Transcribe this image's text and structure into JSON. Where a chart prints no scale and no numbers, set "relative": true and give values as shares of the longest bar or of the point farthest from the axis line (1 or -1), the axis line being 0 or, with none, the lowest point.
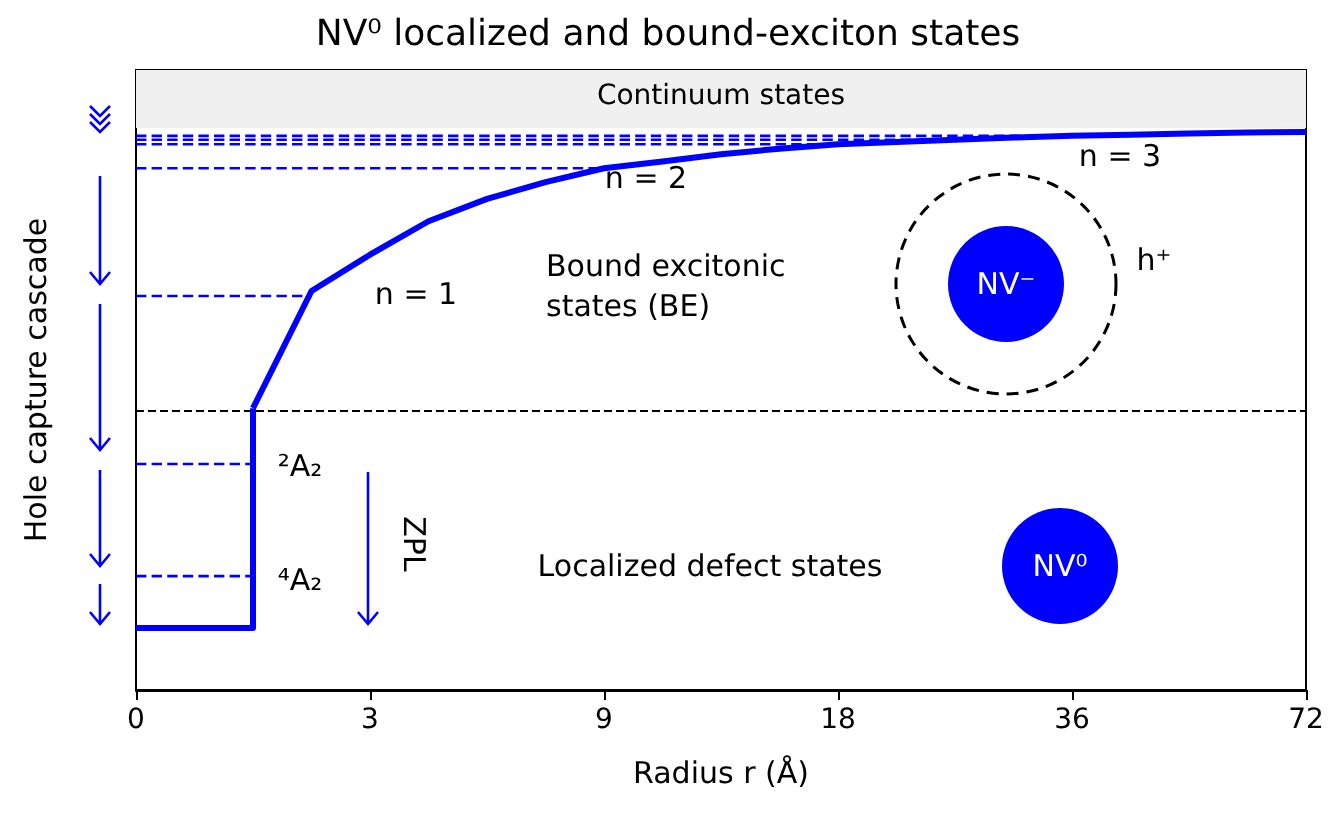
{
  "chart_data": {
    "type": "line",
    "title": "NV⁰ localized and bound-exciton states",
    "xlabel": "Radius r (Å)",
    "ylabel": "Hole capture cascade",
    "relative": true,
    "categories": [
      "0",
      null,
      null,
      null,
      "3",
      null,
      null,
      null,
      "9",
      null,
      null,
      null,
      "18",
      null,
      null,
      null,
      "36",
      null,
      null,
      null,
      "72"
    ],
    "series": [
      {
        "type": "step",
        "color": "#0000ff",
        "line_style": "solid",
        "values": [
          0.111,
          0.111,
          0.505,
          null,
          null,
          null,
          null,
          null,
          null,
          null,
          null,
          null,
          null,
          null,
          null,
          null,
          null,
          null,
          null,
          null,
          null
        ]
      },
      {
        "color": "#0000ff",
        "line_style": "solid",
        "values": [
          null,
          null,
          0.505,
          0.715,
          0.78,
          0.84,
          0.88,
          0.91,
          0.935,
          0.947,
          0.96,
          0.97,
          0.978,
          0.982,
          0.986,
          0.99,
          0.993,
          0.995,
          0.997,
          0.999,
          1.0
        ]
      },
      {
        "color": "#0000ff",
        "line_style": "dashed",
        "values": [
          0.706,
          0.706,
          0.706,
          0.706,
          null,
          null,
          null,
          null,
          null,
          null,
          null,
          null,
          null,
          null,
          null,
          null,
          null,
          null,
          null,
          null,
          null
        ]
      },
      {
        "color": "#0000ff",
        "line_style": "dashed",
        "values": [
          0.935,
          0.935,
          0.935,
          0.935,
          0.935,
          0.935,
          0.935,
          0.935,
          0.935,
          null,
          null,
          null,
          null,
          null,
          null,
          null,
          null,
          null,
          null,
          null,
          null
        ]
      },
      {
        "color": "#0000ff",
        "line_style": "dashed",
        "values": [
          0.978,
          0.978,
          0.978,
          0.978,
          0.978,
          0.978,
          0.978,
          0.978,
          0.978,
          0.978,
          0.978,
          0.978,
          0.978,
          null,
          null,
          null,
          null,
          null,
          null,
          null,
          null
        ]
      },
      {
        "color": "#0000ff",
        "line_style": "dashed",
        "values": [
          0.986,
          0.986,
          0.986,
          0.986,
          0.986,
          0.986,
          0.986,
          0.986,
          0.986,
          0.986,
          0.986,
          0.986,
          0.986,
          0.986,
          0.986,
          null,
          null,
          null,
          null,
          null,
          null
        ]
      },
      {
        "color": "#0000ff",
        "line_style": "dashed",
        "values": [
          0.993,
          0.993,
          0.993,
          0.993,
          0.993,
          0.993,
          0.993,
          0.993,
          0.993,
          0.993,
          0.993,
          0.993,
          0.993,
          0.993,
          0.993,
          0.993,
          0.993,
          null,
          null,
          null,
          null
        ]
      },
      {
        "color": "#0000ff",
        "line_style": "dashed",
        "values": [
          0.405,
          0.405,
          0.405,
          null,
          null,
          null,
          null,
          null,
          null,
          null,
          null,
          null,
          null,
          null,
          null,
          null,
          null,
          null,
          null,
          null,
          null
        ]
      },
      {
        "color": "#0000ff",
        "line_style": "dashed",
        "values": [
          0.204,
          0.204,
          0.204,
          null,
          null,
          null,
          null,
          null,
          null,
          null,
          null,
          null,
          null,
          null,
          null,
          null,
          null,
          null,
          null,
          null,
          null
        ]
      }
    ],
    "bands": [
      {
        "axis": "y",
        "from": 1.007,
        "to": 1.111,
        "label": "Continuum states",
        "color": "#f0f0f0"
      }
    ],
    "ref_lines": [
      {
        "axis": "y",
        "value": 0.5,
        "color": "#000000",
        "line_style": "dashed"
      }
    ],
    "annotations": [
      "n = 3",
      "n = 2",
      "n = 1",
      "Bound excitonic\nstates (BE)",
      "²A₂",
      "⁴A₂",
      "ZPL",
      "Localized defect states",
      "NV⁻",
      "h⁺",
      "NV⁰"
    ],
    "marker": "none",
    "grid": false
  }
}
